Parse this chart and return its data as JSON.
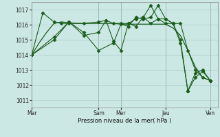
{
  "background_color": "#cce8e4",
  "grid_color": "#aacccc",
  "line_color": "#1a5c1a",
  "xlabel": "Pression niveau de la mer( hPa )",
  "ylim": [
    1010.5,
    1017.5
  ],
  "yticks": [
    1011,
    1012,
    1013,
    1014,
    1015,
    1016,
    1017
  ],
  "day_labels": [
    "Mar",
    "",
    "Sam",
    "Mer",
    "",
    "Jeu",
    "",
    "Ven"
  ],
  "day_positions": [
    0,
    4.5,
    9,
    12,
    15,
    18,
    21,
    24
  ],
  "day_tick_labels": [
    "Mar",
    "Sam",
    "Mer",
    "Jeu",
    "Ven"
  ],
  "day_tick_pos": [
    0,
    9,
    12,
    18,
    24
  ],
  "xlim": [
    0,
    25
  ],
  "vlines": [
    0,
    9,
    12,
    18,
    24
  ],
  "smooth_line": {
    "x": [
      0,
      1,
      2,
      3,
      4,
      5,
      6,
      7,
      8,
      9,
      10,
      11,
      12,
      13,
      14,
      15,
      16,
      17,
      18,
      19,
      20,
      21,
      22,
      23,
      24
    ],
    "y": [
      1014.0,
      1014.8,
      1015.5,
      1016.1,
      1016.2,
      1016.15,
      1016.1,
      1016.1,
      1016.1,
      1016.1,
      1016.1,
      1016.1,
      1016.05,
      1016.05,
      1016.05,
      1016.05,
      1016.05,
      1016.05,
      1016.05,
      1015.8,
      1015.3,
      1014.3,
      1013.2,
      1012.5,
      1012.3
    ]
  },
  "jagged1": {
    "x": [
      0,
      1.5,
      3,
      4,
      5,
      7,
      9,
      10,
      11,
      12,
      13,
      14,
      15,
      16,
      17,
      18,
      19,
      20,
      21,
      22,
      23,
      24
    ],
    "y": [
      1014.0,
      1016.8,
      1016.2,
      1016.1,
      1016.1,
      1016.1,
      1016.2,
      1016.3,
      1016.1,
      1016.1,
      1016.1,
      1016.4,
      1016.5,
      1016.1,
      1016.4,
      1016.4,
      1016.1,
      1016.1,
      1014.3,
      1013.0,
      1012.5,
      1012.3
    ]
  },
  "jagged2": {
    "x": [
      0,
      3,
      5,
      7,
      9,
      10,
      11,
      12,
      13,
      14,
      15,
      16,
      17,
      18,
      19,
      20,
      21,
      22,
      23,
      24
    ],
    "y": [
      1014.0,
      1015.0,
      1016.2,
      1015.3,
      1015.5,
      1016.3,
      1014.9,
      1014.3,
      1016.1,
      1015.9,
      1016.5,
      1017.3,
      1016.4,
      1016.1,
      1016.1,
      1015.0,
      1011.6,
      1012.8,
      1013.0,
      1012.3
    ]
  },
  "jagged3": {
    "x": [
      0,
      3,
      5,
      7,
      9,
      11,
      12,
      13,
      14,
      15,
      16,
      17,
      18,
      19,
      20,
      21,
      22,
      23,
      24
    ],
    "y": [
      1014.0,
      1015.2,
      1016.2,
      1015.5,
      1014.3,
      1014.8,
      1016.05,
      1015.9,
      1016.5,
      1016.4,
      1016.5,
      1017.3,
      1016.4,
      1016.1,
      1014.8,
      1011.6,
      1012.5,
      1012.9,
      1012.3
    ]
  }
}
